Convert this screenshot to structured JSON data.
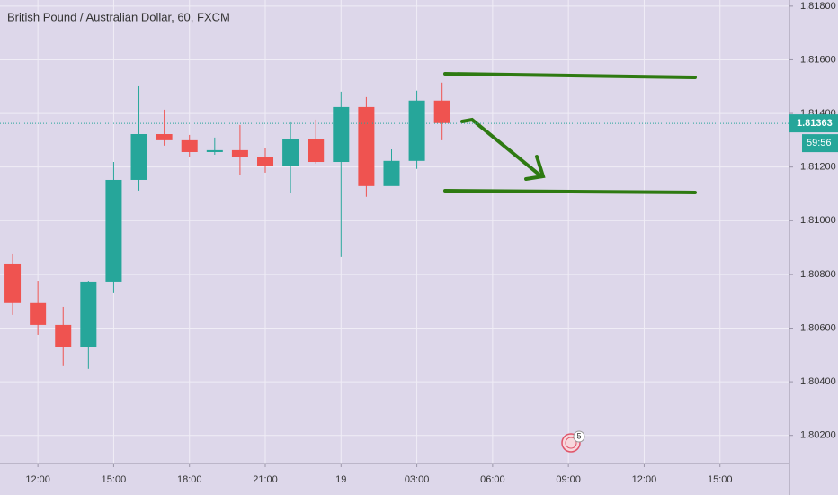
{
  "chart_data": {
    "type": "candlestick",
    "title": "British Pound / Australian Dollar, 60, FXCM",
    "x": [
      11,
      12,
      13,
      14,
      15,
      16,
      17,
      18,
      19,
      20,
      21,
      22,
      23,
      24,
      25,
      26,
      27,
      28
    ],
    "open": [
      1.8084,
      1.80693,
      1.80612,
      1.80531,
      1.80773,
      1.81152,
      1.81323,
      1.813,
      1.81256,
      1.81263,
      1.81236,
      1.81203,
      1.81303,
      1.81219,
      1.81424,
      1.81129,
      1.81223,
      1.81448
    ],
    "high": [
      1.80877,
      1.80776,
      1.80679,
      1.80776,
      1.81219,
      1.81501,
      1.81414,
      1.8132,
      1.8131,
      1.81357,
      1.8127,
      1.81367,
      1.81377,
      1.81481,
      1.81461,
      1.81266,
      1.81485,
      1.81515
    ],
    "low": [
      1.80649,
      1.80575,
      1.80458,
      1.80448,
      1.80733,
      1.81112,
      1.8128,
      1.81236,
      1.81246,
      1.81169,
      1.81179,
      1.81102,
      1.81213,
      1.80867,
      1.81089,
      1.81132,
      1.81193,
      1.813
    ],
    "close": [
      1.80693,
      1.80612,
      1.80531,
      1.80773,
      1.81152,
      1.81323,
      1.813,
      1.81256,
      1.81263,
      1.81236,
      1.81203,
      1.81303,
      1.81219,
      1.81424,
      1.81129,
      1.81223,
      1.81448,
      1.81364
    ],
    "up_color": "#26a69a",
    "down_color": "#ef5350",
    "xlim": [
      10.5,
      41.75
    ],
    "xticks": [
      {
        "value": 12,
        "label": "12:00"
      },
      {
        "value": 15,
        "label": "15:00"
      },
      {
        "value": 18,
        "label": "18:00"
      },
      {
        "value": 21,
        "label": "21:00"
      },
      {
        "value": 24,
        "label": "19"
      },
      {
        "value": 27,
        "label": "03:00"
      },
      {
        "value": 30,
        "label": "06:00"
      },
      {
        "value": 33,
        "label": "09:00"
      },
      {
        "value": 36,
        "label": "12:00"
      },
      {
        "value": 39,
        "label": "15:00"
      }
    ],
    "ylim": [
      1.80095,
      1.81823
    ],
    "yticks": [
      {
        "value": 1.802,
        "label": "1.80200"
      },
      {
        "value": 1.804,
        "label": "1.80400"
      },
      {
        "value": 1.806,
        "label": "1.80600"
      },
      {
        "value": 1.808,
        "label": "1.80800"
      },
      {
        "value": 1.81,
        "label": "1.81000"
      },
      {
        "value": 1.812,
        "label": "1.81200"
      },
      {
        "value": 1.814,
        "label": "1.81400"
      },
      {
        "value": 1.816,
        "label": "1.81600"
      },
      {
        "value": 1.818,
        "label": "1.81800"
      }
    ],
    "grid": true,
    "last_price": 1.81363,
    "countdown": "59:56",
    "event_count": "5"
  }
}
